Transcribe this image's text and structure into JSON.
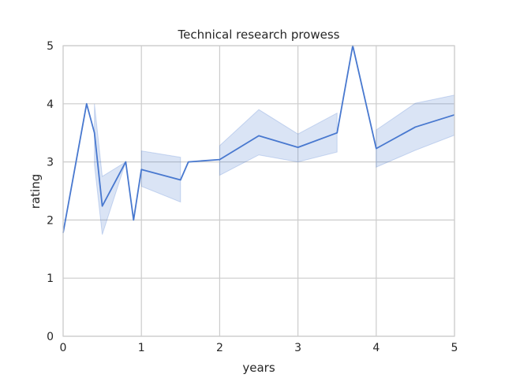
{
  "chart_data": {
    "type": "line",
    "title": "Technical research prowess",
    "xlabel": "years",
    "ylabel": "rating",
    "xlim": [
      0,
      5
    ],
    "ylim": [
      0,
      5
    ],
    "xticks": [
      "0",
      "1",
      "2",
      "3",
      "4",
      "5"
    ],
    "yticks": [
      "0",
      "1",
      "2",
      "3",
      "4",
      "5"
    ],
    "grid": true,
    "colors": {
      "line": "#4878CF",
      "band": "#4878CF",
      "grid": "#cccccc",
      "frame": "#cccccc",
      "text": "#262626"
    },
    "series": [
      {
        "x": [
          0,
          0.3,
          0.4,
          0.5,
          0.8,
          0.9,
          1.0,
          1.5,
          1.6,
          2.0,
          2.5,
          3.0,
          3.5,
          3.7,
          4.0,
          4.5,
          5.0
        ],
        "y": [
          1.78,
          4.0,
          3.5,
          2.24,
          3.0,
          2.0,
          2.87,
          2.69,
          3.0,
          3.04,
          3.45,
          3.25,
          3.5,
          5.0,
          3.23,
          3.6,
          3.81
        ],
        "ci_segments": [
          {
            "x": [
              0.4,
              0.5,
              0.8
            ],
            "lower": [
              2.95,
              1.75,
              3.0
            ],
            "upper": [
              4.0,
              2.75,
              3.0
            ]
          },
          {
            "x": [
              1.0,
              1.5
            ],
            "lower": [
              2.58,
              2.31
            ],
            "upper": [
              3.19,
              3.08
            ]
          },
          {
            "x": [
              2.0,
              2.5,
              3.0,
              3.5
            ],
            "lower": [
              2.77,
              3.12,
              3.0,
              3.17
            ],
            "upper": [
              3.28,
              3.9,
              3.48,
              3.84
            ]
          },
          {
            "x": [
              4.0,
              4.5,
              5.0
            ],
            "lower": [
              2.91,
              3.2,
              3.46
            ],
            "upper": [
              3.55,
              4.01,
              4.15
            ]
          }
        ]
      }
    ]
  }
}
